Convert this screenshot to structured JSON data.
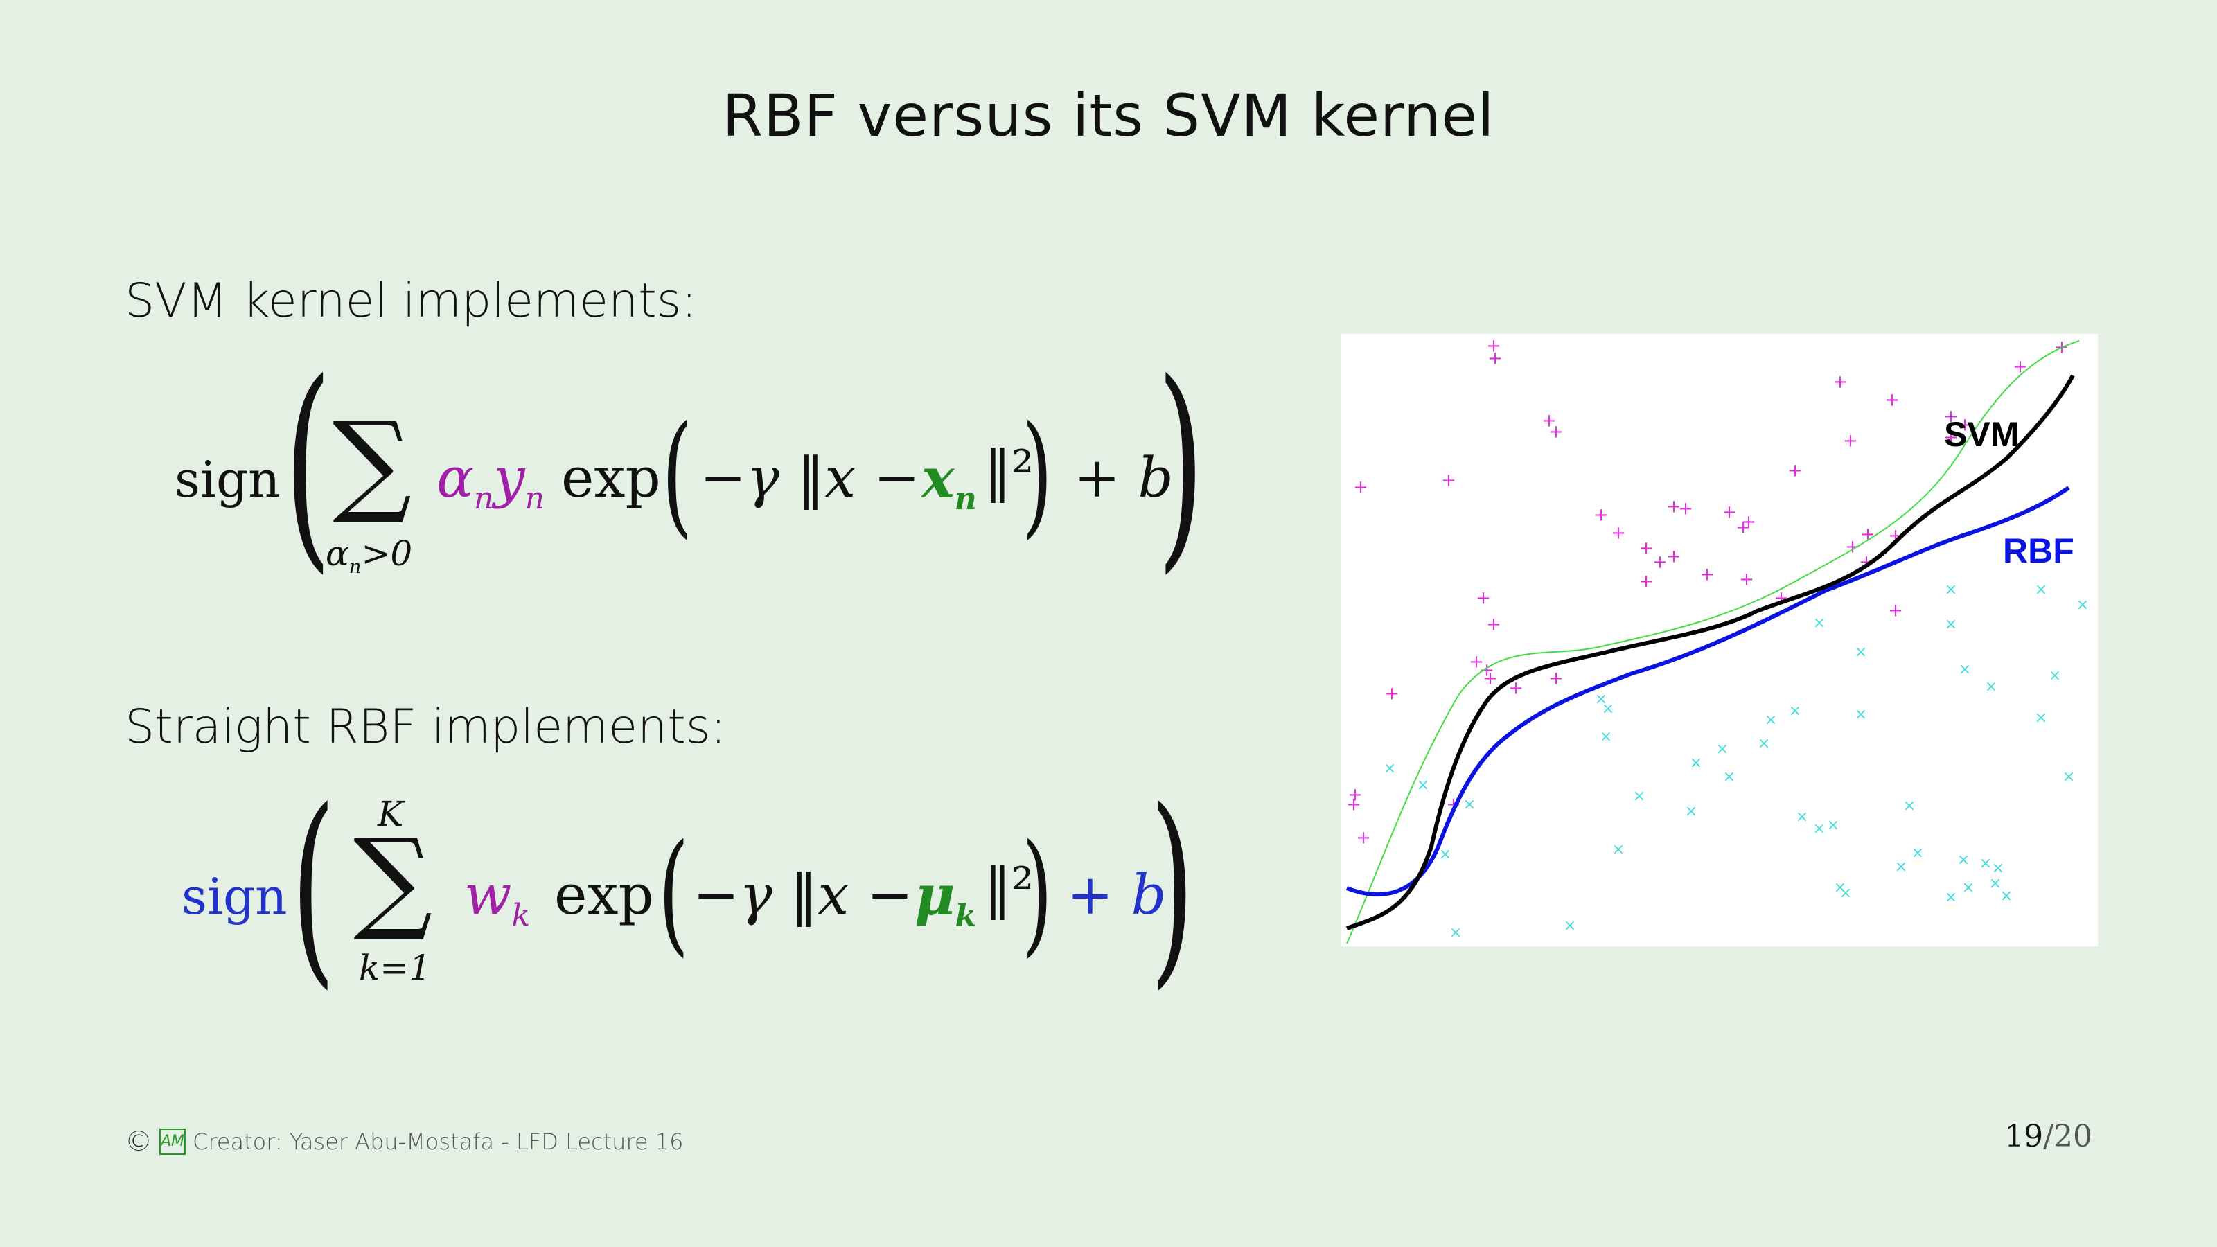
{
  "title": "RBF versus its SVM kernel",
  "svm_label": "SVM kernel implements:",
  "rbf_label": "Straight RBF implements:",
  "svm_formula": {
    "sign": "sign",
    "sum_under": "αn>0",
    "alpha_y": "αnyn",
    "exp": "exp",
    "inner": "−γ ‖x − ",
    "xn": "xn",
    "norm_sq": "‖²",
    "plus_b": "+ b"
  },
  "rbf_formula": {
    "sign": "sign",
    "sum_over": "K",
    "sum_under": "k=1",
    "wk": "wk",
    "exp": "exp",
    "inner": "−γ ‖x − ",
    "mu": "μk",
    "norm_sq": "‖²",
    "plus_b": "+ b"
  },
  "plot": {
    "svm_label": "SVM",
    "rbf_label": "RBF",
    "colors": {
      "svm": "#000000",
      "rbf": "#0a14e0",
      "target": "#44dd44",
      "plus": "#e030e0",
      "cross": "#44dddd"
    }
  },
  "footer": {
    "copyright": "©",
    "logo": "AM",
    "text": "Creator: Yaser Abu-Mostafa - LFD Lecture 16"
  },
  "page": {
    "current": "19",
    "total": "/20"
  }
}
